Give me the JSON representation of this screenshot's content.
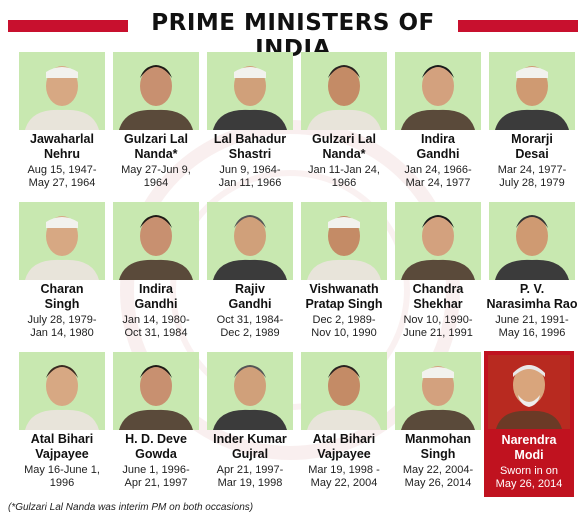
{
  "title": "PRIME MINISTERS OF INDIA",
  "colors": {
    "accent": "#c8102e",
    "photo_bg": "#c8e8b0",
    "modi_bg": "#c0121f"
  },
  "ministers": [
    {
      "name": "Jawaharlal Nehru",
      "name_lines": [
        "Jawaharlal",
        "Nehru"
      ],
      "dates_lines": [
        "Aug 15, 1947-",
        "May 27, 1964"
      ]
    },
    {
      "name": "Gulzari Lal Nanda*",
      "name_lines": [
        "Gulzari Lal",
        "Nanda*"
      ],
      "dates_lines": [
        "May 27-Jun 9,",
        "1964"
      ]
    },
    {
      "name": "Lal Bahadur Shastri",
      "name_lines": [
        "Lal Bahadur",
        "Shastri"
      ],
      "dates_lines": [
        "Jun 9, 1964-",
        "Jan 11, 1966"
      ]
    },
    {
      "name": "Gulzari Lal Nanda*",
      "name_lines": [
        "Gulzari Lal",
        "Nanda*"
      ],
      "dates_lines": [
        "Jan 11-Jan 24,",
        "1966"
      ]
    },
    {
      "name": "Indira Gandhi",
      "name_lines": [
        "Indira",
        "Gandhi"
      ],
      "dates_lines": [
        "Jan 24, 1966-",
        "Mar 24, 1977"
      ]
    },
    {
      "name": "Morarji Desai",
      "name_lines": [
        "Morarji",
        "Desai"
      ],
      "dates_lines": [
        "Mar 24, 1977-",
        "July 28, 1979"
      ]
    },
    {
      "name": "Charan Singh",
      "name_lines": [
        "Charan",
        "Singh"
      ],
      "dates_lines": [
        "July 28, 1979-",
        "Jan 14, 1980"
      ]
    },
    {
      "name": "Indira Gandhi",
      "name_lines": [
        "Indira",
        "Gandhi"
      ],
      "dates_lines": [
        "Jan 14, 1980-",
        "Oct 31, 1984"
      ]
    },
    {
      "name": "Rajiv Gandhi",
      "name_lines": [
        "Rajiv",
        "Gandhi"
      ],
      "dates_lines": [
        "Oct 31, 1984-",
        "Dec 2, 1989"
      ]
    },
    {
      "name": "Vishwanath Pratap Singh",
      "name_lines": [
        "Vishwanath",
        "Pratap Singh"
      ],
      "dates_lines": [
        "Dec 2, 1989-",
        "Nov 10, 1990"
      ]
    },
    {
      "name": "Chandra Shekhar",
      "name_lines": [
        "Chandra",
        "Shekhar"
      ],
      "dates_lines": [
        "Nov 10, 1990-",
        "June 21, 1991"
      ]
    },
    {
      "name": "P. V. Narasimha Rao",
      "name_lines": [
        "P. V.",
        "Narasimha Rao"
      ],
      "dates_lines": [
        "June 21, 1991-",
        "May 16, 1996"
      ]
    },
    {
      "name": "Atal Bihari Vajpayee",
      "name_lines": [
        "Atal Bihari",
        "Vajpayee"
      ],
      "dates_lines": [
        "May 16-June 1,",
        "1996"
      ]
    },
    {
      "name": "H. D. Deve Gowda",
      "name_lines": [
        "H. D. Deve",
        "Gowda"
      ],
      "dates_lines": [
        "June 1, 1996-",
        "Apr 21, 1997"
      ]
    },
    {
      "name": "Inder Kumar Gujral",
      "name_lines": [
        "Inder Kumar",
        "Gujral"
      ],
      "dates_lines": [
        "Apr 21, 1997-",
        "Mar 19, 1998"
      ]
    },
    {
      "name": "Atal Bihari Vajpayee",
      "name_lines": [
        "Atal Bihari",
        "Vajpayee"
      ],
      "dates_lines": [
        "Mar 19, 1998 -",
        "May 22, 2004"
      ]
    },
    {
      "name": "Manmohan Singh",
      "name_lines": [
        "Manmohan",
        "Singh"
      ],
      "dates_lines": [
        "May 22, 2004-",
        "May 26, 2014"
      ]
    }
  ],
  "modi": {
    "name_lines": [
      "Narendra",
      "Modi"
    ],
    "dates_lines": [
      "Sworn in on",
      "May 26, 2014"
    ]
  },
  "footnote": "(*Gulzari Lal Nanda was interim PM on both occasions)"
}
